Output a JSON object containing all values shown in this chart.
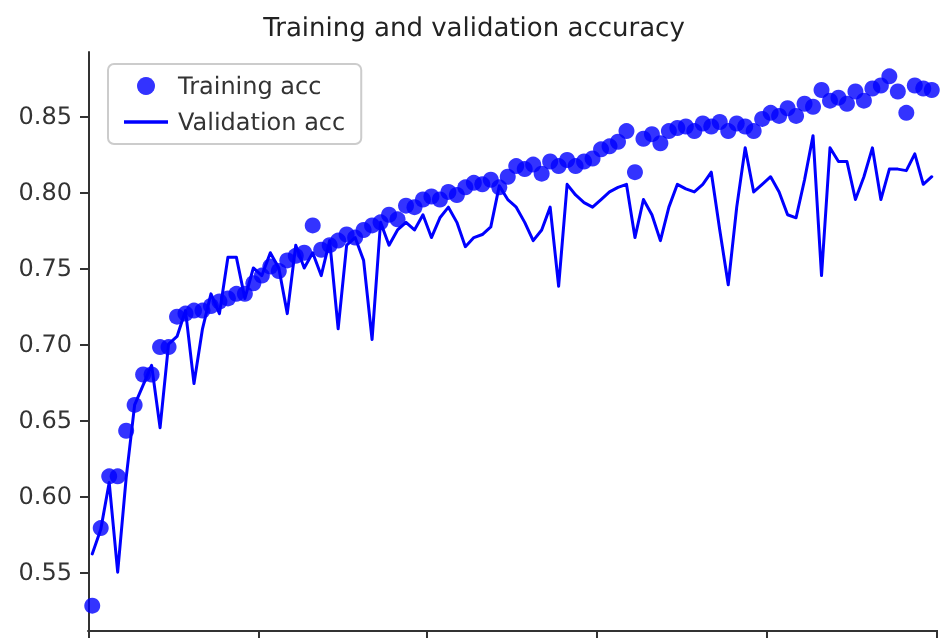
{
  "chart_data": {
    "type": "scatter",
    "title": "Training and validation accuracy",
    "categories": [
      null,
      null,
      null,
      null,
      null,
      null,
      null,
      null,
      null,
      null,
      null,
      null,
      null,
      null,
      null,
      null,
      null,
      null,
      null,
      null,
      null,
      null,
      null,
      null,
      null,
      null,
      null,
      null,
      null,
      null,
      null,
      null,
      null,
      null,
      null,
      null,
      null,
      null,
      null,
      null,
      null,
      null,
      null,
      null,
      null,
      null,
      null,
      null,
      null,
      null,
      null,
      null,
      null,
      null,
      null,
      null,
      null,
      null,
      null,
      null,
      null,
      null,
      null,
      null,
      null,
      null,
      null,
      null,
      null,
      null,
      null,
      null,
      null,
      null,
      null,
      null,
      null,
      null,
      null,
      null,
      null,
      null,
      null,
      null,
      null,
      null,
      null,
      null,
      null,
      null,
      null,
      null,
      null,
      null,
      null,
      null,
      null,
      null,
      null,
      null
    ],
    "series": [
      {
        "name": "Training acc",
        "marker": "circle",
        "color": "#0000ff",
        "values": [
          0.528,
          0.579,
          0.613,
          0.613,
          0.643,
          0.66,
          0.68,
          0.68,
          0.698,
          0.698,
          0.718,
          0.72,
          0.722,
          0.722,
          0.725,
          0.728,
          0.73,
          0.733,
          0.733,
          0.74,
          0.745,
          0.751,
          0.748,
          0.755,
          0.758,
          0.76,
          0.778,
          0.762,
          0.765,
          0.768,
          0.772,
          0.77,
          0.775,
          0.778,
          0.78,
          0.785,
          0.782,
          0.791,
          0.79,
          0.795,
          0.797,
          0.795,
          0.8,
          0.798,
          0.803,
          0.806,
          0.805,
          0.808,
          0.803,
          0.81,
          0.817,
          0.815,
          0.818,
          0.812,
          0.82,
          0.817,
          0.821,
          0.817,
          0.82,
          0.822,
          0.828,
          0.83,
          0.833,
          0.84,
          0.813,
          0.835,
          0.838,
          0.832,
          0.84,
          0.842,
          0.843,
          0.84,
          0.845,
          0.843,
          0.846,
          0.84,
          0.845,
          0.843,
          0.84,
          0.848,
          0.852,
          0.85,
          0.855,
          0.85,
          0.858,
          0.856,
          0.867,
          0.86,
          0.862,
          0.858,
          0.866,
          0.86,
          0.868,
          0.87,
          0.876,
          0.866,
          0.852,
          0.87,
          0.868,
          0.867
        ]
      },
      {
        "name": "Validation acc",
        "type": "line",
        "marker": "none",
        "line_style": "solid",
        "color": "#0000ff",
        "values": [
          0.562,
          0.578,
          0.609,
          0.55,
          0.612,
          0.66,
          0.673,
          0.686,
          0.645,
          0.7,
          0.705,
          0.722,
          0.674,
          0.71,
          0.733,
          0.72,
          0.757,
          0.757,
          0.73,
          0.75,
          0.745,
          0.76,
          0.75,
          0.72,
          0.765,
          0.75,
          0.76,
          0.745,
          0.768,
          0.71,
          0.765,
          0.77,
          0.755,
          0.703,
          0.78,
          0.765,
          0.775,
          0.78,
          0.775,
          0.785,
          0.77,
          0.783,
          0.79,
          0.78,
          0.764,
          0.77,
          0.772,
          0.777,
          0.804,
          0.795,
          0.79,
          0.78,
          0.768,
          0.775,
          0.79,
          0.738,
          0.805,
          0.798,
          0.793,
          0.79,
          0.795,
          0.8,
          0.803,
          0.805,
          0.77,
          0.795,
          0.785,
          0.768,
          0.79,
          0.805,
          0.802,
          0.8,
          0.805,
          0.813,
          0.775,
          0.739,
          0.79,
          0.829,
          0.8,
          0.805,
          0.81,
          0.8,
          0.785,
          0.783,
          0.808,
          0.837,
          0.745,
          0.829,
          0.82,
          0.82,
          0.795,
          0.81,
          0.829,
          0.795,
          0.815,
          0.815,
          0.814,
          0.825,
          0.805,
          0.81
        ]
      }
    ],
    "ylim": [
      0.512,
      0.892
    ],
    "yticks": [
      0.55,
      {
        "value": 0.6,
        "label": "0.60"
      },
      0.65,
      {
        "value": 0.7,
        "label": "0.70"
      },
      0.75,
      {
        "value": 0.8,
        "label": "0.80"
      },
      0.85
    ],
    "tick_labels": "y",
    "grid": false,
    "legend": "top left"
  }
}
